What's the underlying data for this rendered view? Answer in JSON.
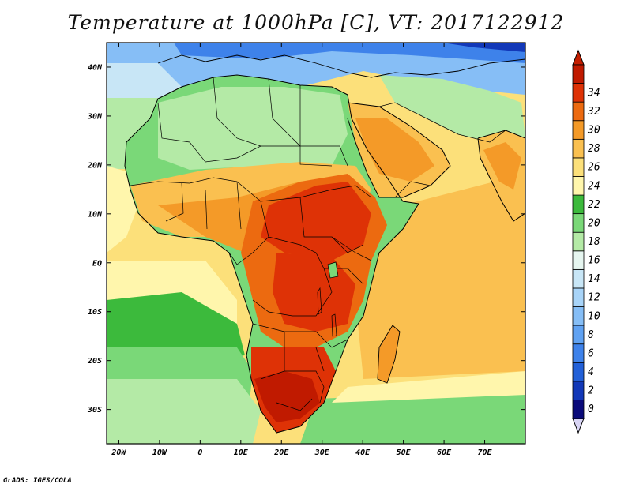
{
  "title": "Temperature at 1000hPa [C], VT: 2017122912",
  "credit": "GrADS: IGES/COLA",
  "map": {
    "lon_range": [
      -23,
      80
    ],
    "lat_range": [
      -37,
      45
    ],
    "lon_ticks": [
      "20W",
      "10W",
      "0",
      "10E",
      "20E",
      "30E",
      "40E",
      "50E",
      "60E",
      "70E"
    ],
    "lon_tick_values": [
      -20,
      -10,
      0,
      10,
      20,
      30,
      40,
      50,
      60,
      70
    ],
    "lat_ticks": [
      "40N",
      "30N",
      "20N",
      "10N",
      "EQ",
      "10S",
      "20S",
      "30S"
    ],
    "lat_tick_values": [
      40,
      30,
      20,
      10,
      0,
      -10,
      -20,
      -30
    ]
  },
  "colorbar": {
    "labels": [
      "0",
      "2",
      "4",
      "6",
      "8",
      "10",
      "12",
      "14",
      "16",
      "18",
      "20",
      "22",
      "24",
      "26",
      "28",
      "30",
      "32",
      "34"
    ],
    "colors": [
      "#0a0a7a",
      "#1238b8",
      "#2260d8",
      "#3e82ea",
      "#60a2f2",
      "#86bef6",
      "#a8d4f8",
      "#c8e6f6",
      "#e6f6f0",
      "#b4eaa6",
      "#7ad878",
      "#3cba3c",
      "#fff6ac",
      "#fce07a",
      "#fac050",
      "#f49a28",
      "#ec6a10",
      "#de3206",
      "#c01a00"
    ],
    "under_color": "#d8d4f4",
    "over_color": "#c41e00"
  }
}
